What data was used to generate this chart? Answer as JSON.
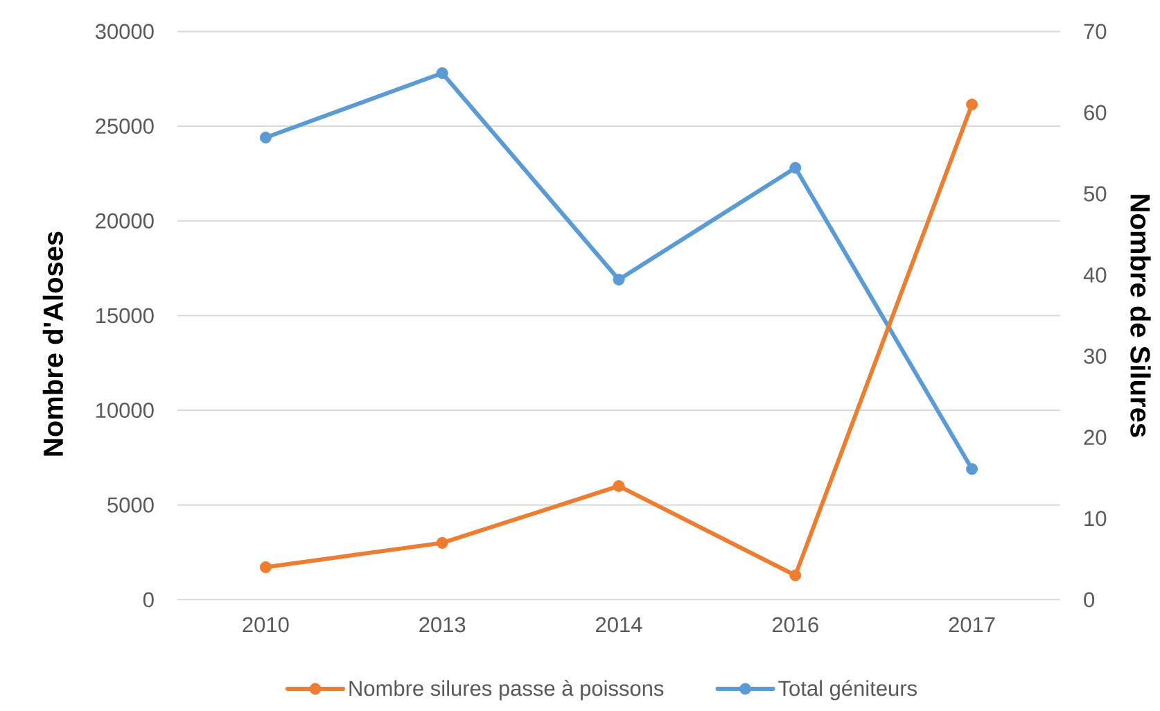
{
  "chart_data": {
    "type": "line",
    "categories": [
      "2010",
      "2013",
      "2014",
      "2016",
      "2017"
    ],
    "ylabel": "Nombre d'Aloses",
    "y2label": "Nombre de Silures",
    "series": [
      {
        "name": "Nombre silures passe à poissons",
        "color": "#ed7d31",
        "axis": "y2",
        "values": [
          4,
          7,
          14,
          3,
          61
        ]
      },
      {
        "name": "Total géniteurs",
        "color": "#5b9bd5",
        "values": [
          24400,
          27800,
          16900,
          22800,
          6900
        ]
      }
    ],
    "ylim": [
      0,
      30000
    ],
    "yticks": [
      0,
      5000,
      10000,
      15000,
      20000,
      25000,
      30000
    ],
    "y2lim": [
      0,
      70
    ],
    "y2ticks": [
      0,
      10,
      20,
      30,
      40,
      50,
      60,
      70
    ],
    "grid": "y",
    "legend": "bottom",
    "marker": "circle",
    "line_style": "solid"
  }
}
